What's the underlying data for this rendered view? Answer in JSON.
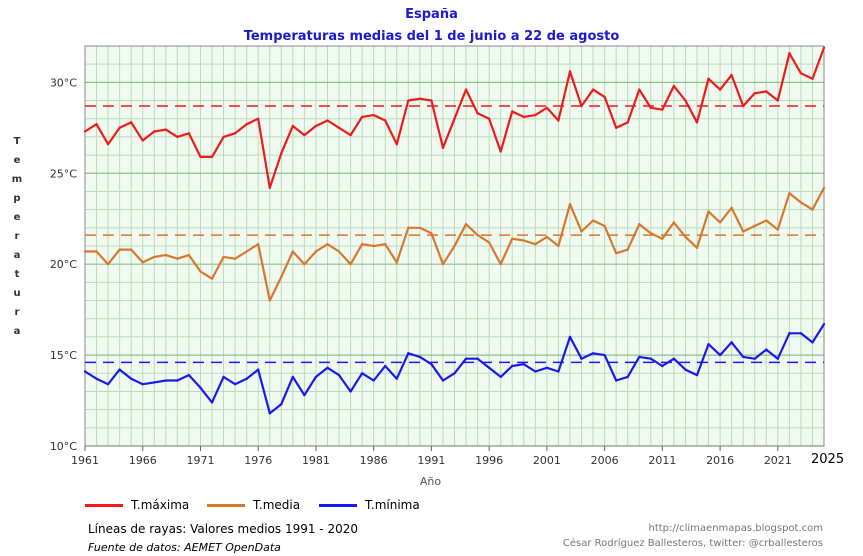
{
  "header": {
    "title": "España",
    "subtitle": "Temperaturas medias del 1 de junio a 22 de agosto"
  },
  "colors": {
    "max": "#ee1b1b",
    "mean": "#d8782f",
    "min": "#1a1aee",
    "grid": "#b9dcb9",
    "background": "#f1faf1"
  },
  "legend": {
    "max_label": "T.máxima",
    "mean_label": "T.media",
    "min_label": "T.mínima"
  },
  "notes": {
    "dashed": "Líneas de rayas: Valores medios 1991 - 2020",
    "source": "Fuente de datos: AEMET OpenData"
  },
  "credits": {
    "line1": "http://climaenmapas.blogspot.com",
    "line2": "César Rodríguez Ballesteros, twitter: @crballesteros"
  },
  "last_year_label": "2025",
  "chart_data": {
    "type": "line",
    "xlabel": "Año",
    "ylabel": "Temperatura",
    "xlim": [
      1961,
      2025
    ],
    "ylim": [
      10,
      32
    ],
    "x_ticks": [
      "1961",
      "1966",
      "1971",
      "1976",
      "1981",
      "1986",
      "1991",
      "1996",
      "2001",
      "2006",
      "2011",
      "2016",
      "2021"
    ],
    "y_ticks": [
      {
        "value": 10,
        "label": "10°C"
      },
      {
        "value": 15,
        "label": "15°C"
      },
      {
        "value": 20,
        "label": "20°C"
      },
      {
        "value": 25,
        "label": "25°C"
      },
      {
        "value": 30,
        "label": "30°C"
      }
    ],
    "grid": true,
    "x": [
      1961,
      1962,
      1963,
      1964,
      1965,
      1966,
      1967,
      1968,
      1969,
      1970,
      1971,
      1972,
      1973,
      1974,
      1975,
      1976,
      1977,
      1978,
      1979,
      1980,
      1981,
      1982,
      1983,
      1984,
      1985,
      1986,
      1987,
      1988,
      1989,
      1990,
      1991,
      1992,
      1993,
      1994,
      1995,
      1996,
      1997,
      1998,
      1999,
      2000,
      2001,
      2002,
      2003,
      2004,
      2005,
      2006,
      2007,
      2008,
      2009,
      2010,
      2011,
      2012,
      2013,
      2014,
      2015,
      2016,
      2017,
      2018,
      2019,
      2020,
      2021,
      2022,
      2023,
      2024,
      2025
    ],
    "series": [
      {
        "name": "T.máxima",
        "color_key": "max",
        "values": [
          27.3,
          27.7,
          26.6,
          27.5,
          27.8,
          26.8,
          27.3,
          27.4,
          27.0,
          27.2,
          25.9,
          25.9,
          27.0,
          27.2,
          27.7,
          28.0,
          24.2,
          26.1,
          27.6,
          27.1,
          27.6,
          27.9,
          27.5,
          27.1,
          28.1,
          28.2,
          27.9,
          26.6,
          29.0,
          29.1,
          29.0,
          26.4,
          28.0,
          29.6,
          28.3,
          28.0,
          26.2,
          28.4,
          28.1,
          28.2,
          28.6,
          27.9,
          30.6,
          28.7,
          29.6,
          29.2,
          27.5,
          27.8,
          29.6,
          28.6,
          28.5,
          29.8,
          29.0,
          27.8,
          30.2,
          29.6,
          30.4,
          28.7,
          29.4,
          29.5,
          29.0,
          31.6,
          30.5,
          30.2,
          31.9
        ]
      },
      {
        "name": "T.media",
        "color_key": "mean",
        "values": [
          20.7,
          20.7,
          20.0,
          20.8,
          20.8,
          20.1,
          20.4,
          20.5,
          20.3,
          20.5,
          19.6,
          19.2,
          20.4,
          20.3,
          20.7,
          21.1,
          18.0,
          19.3,
          20.7,
          20.0,
          20.7,
          21.1,
          20.7,
          20.0,
          21.1,
          21.0,
          21.1,
          20.1,
          22.0,
          22.0,
          21.7,
          20.0,
          21.0,
          22.2,
          21.6,
          21.2,
          20.0,
          21.4,
          21.3,
          21.1,
          21.5,
          21.0,
          23.3,
          21.8,
          22.4,
          22.1,
          20.6,
          20.8,
          22.2,
          21.7,
          21.4,
          22.3,
          21.5,
          20.9,
          22.9,
          22.3,
          23.1,
          21.8,
          22.1,
          22.4,
          21.9,
          23.9,
          23.4,
          23.0,
          24.2
        ]
      },
      {
        "name": "T.mínima",
        "color_key": "min",
        "values": [
          14.1,
          13.7,
          13.4,
          14.2,
          13.7,
          13.4,
          13.5,
          13.6,
          13.6,
          13.9,
          13.2,
          12.4,
          13.8,
          13.4,
          13.7,
          14.2,
          11.8,
          12.3,
          13.8,
          12.8,
          13.8,
          14.3,
          13.9,
          13.0,
          14.0,
          13.6,
          14.4,
          13.7,
          15.1,
          14.9,
          14.5,
          13.6,
          14.0,
          14.8,
          14.8,
          14.3,
          13.8,
          14.4,
          14.5,
          14.1,
          14.3,
          14.1,
          16.0,
          14.8,
          15.1,
          15.0,
          13.6,
          13.8,
          14.9,
          14.8,
          14.4,
          14.8,
          14.2,
          13.9,
          15.6,
          15.0,
          15.7,
          14.9,
          14.8,
          15.3,
          14.8,
          16.2,
          16.2,
          15.7,
          16.7
        ]
      }
    ],
    "reference_means": [
      {
        "name": "T.máxima",
        "color_key": "max",
        "value": 28.7
      },
      {
        "name": "T.media",
        "color_key": "mean",
        "value": 21.6
      },
      {
        "name": "T.mínima",
        "color_key": "min",
        "value": 14.6
      }
    ]
  }
}
